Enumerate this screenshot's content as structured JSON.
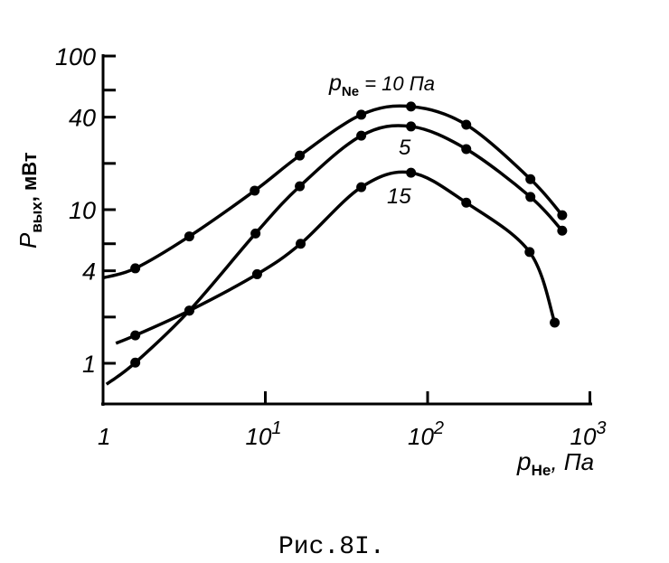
{
  "chart_data": {
    "type": "line",
    "title": "",
    "caption": "Рис.8I.",
    "xlabel": {
      "main": "p",
      "sub": "He",
      "unit": ", Па"
    },
    "ylabel": {
      "main": "P",
      "sub": "вых",
      "unit": ", мВт"
    },
    "xscale": "log",
    "yscale": "log",
    "xlim": [
      1,
      1000
    ],
    "ylim": [
      0.55,
      100
    ],
    "x_ticks": [
      {
        "value": 1,
        "base": "1",
        "exp": ""
      },
      {
        "value": 10,
        "base": "10",
        "exp": "1"
      },
      {
        "value": 100,
        "base": "10",
        "exp": "2"
      },
      {
        "value": 1000,
        "base": "10",
        "exp": "3"
      }
    ],
    "y_ticks": [
      {
        "value": 100,
        "label": "100"
      },
      {
        "value": 40,
        "label": "40"
      },
      {
        "value": 10,
        "label": "10"
      },
      {
        "value": 4,
        "label": "4"
      },
      {
        "value": 1,
        "label": "1"
      }
    ],
    "y_minor_ticks": [
      60,
      20,
      6,
      2
    ],
    "grid": false,
    "legend": "inline labels",
    "line_color": "#000000",
    "series": [
      {
        "name": "10 Па",
        "label": {
          "main": "p",
          "sub": "Ne",
          "text": " = 10 Па"
        },
        "curve_start": {
          "x": 1,
          "y": 3.6
        },
        "x": [
          1.58,
          3.4,
          8.6,
          16.3,
          39,
          79,
          173,
          430,
          675
        ],
        "y": [
          4.15,
          6.7,
          13.3,
          22.5,
          41.5,
          46.9,
          35.7,
          15.8,
          9.2
        ]
      },
      {
        "name": "5",
        "label": {
          "text": "5"
        },
        "curve_start": {
          "x": 1.05,
          "y": 0.73
        },
        "x": [
          1.58,
          3.4,
          8.7,
          16.3,
          39,
          79,
          173,
          430,
          675
        ],
        "y": [
          1.01,
          2.2,
          7.0,
          14.2,
          30.3,
          34.8,
          24.8,
          12.1,
          7.3
        ]
      },
      {
        "name": "15",
        "label": {
          "text": "15"
        },
        "curve_start": {
          "x": 1.2,
          "y": 1.35
        },
        "x": [
          1.58,
          3.4,
          8.9,
          16.5,
          39,
          79,
          173,
          425,
          607
        ],
        "y": [
          1.52,
          2.2,
          3.8,
          6.0,
          14.0,
          17.4,
          11.1,
          5.3,
          1.84
        ]
      }
    ]
  }
}
